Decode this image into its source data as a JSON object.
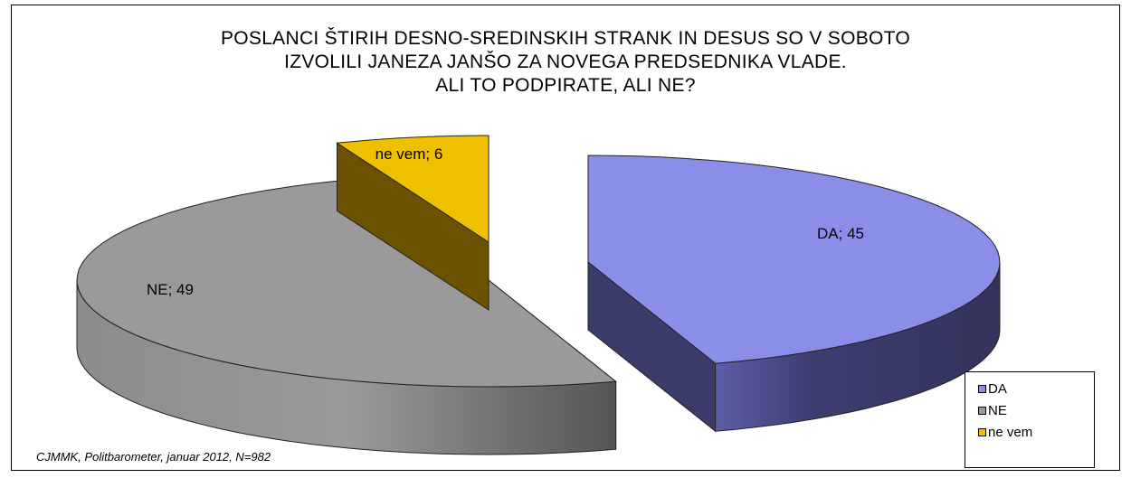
{
  "chart_data": {
    "type": "pie",
    "title_lines": [
      "POSLANCI ŠTIRIH DESNO-SREDINSKIH STRANK IN DESUS SO V SOBOTO",
      "IZVOLILI JANEZA JANŠO ZA NOVEGA PREDSEDNIKA VLADE.",
      "ALI TO PODPIRATE, ALI NE?"
    ],
    "slices": [
      {
        "label": "DA",
        "value": 45,
        "data_label": "DA; 45",
        "color": "#8b8ee8",
        "side_color": "#3c3c6a"
      },
      {
        "label": "NE",
        "value": 49,
        "data_label": "NE; 49",
        "color": "#9a9a9a",
        "side_color": "#6e6e6e"
      },
      {
        "label": "ne vem",
        "value": 6,
        "data_label": "ne vem; 6",
        "color": "#efc000",
        "side_color": "#6b5200"
      }
    ],
    "legend_position": "bottom-right",
    "exploded": true,
    "style": "3d"
  },
  "source_note": "CJMMK, Politbarometer, januar 2012,  N=982"
}
